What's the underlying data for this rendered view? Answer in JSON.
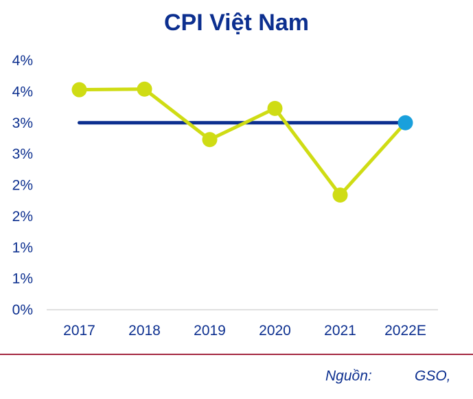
{
  "chart_data": {
    "type": "line",
    "title": "CPI Việt Nam",
    "categories": [
      "2017",
      "2018",
      "2019",
      "2020",
      "2021",
      "2022E"
    ],
    "series": [
      {
        "values": [
          3.53,
          3.54,
          2.73,
          3.23,
          1.84,
          3.0
        ],
        "color": "#cfdc14"
      },
      {
        "values": [
          3.0,
          3.0,
          3.0,
          3.0,
          3.0,
          3.0
        ],
        "color": "#0c2f8f"
      }
    ],
    "highlight_point": {
      "category": "2022E",
      "value": 3.0,
      "color": "#1aa0dc"
    },
    "y_tick_labels": [
      "0%",
      "1%",
      "1%",
      "2%",
      "2%",
      "3%",
      "3%",
      "4%",
      "4%"
    ],
    "ylim": [
      0,
      4
    ],
    "grid": false,
    "xlabel": "",
    "ylabel": ""
  },
  "source": {
    "label": "Nguồn:",
    "value": "GSO,"
  }
}
